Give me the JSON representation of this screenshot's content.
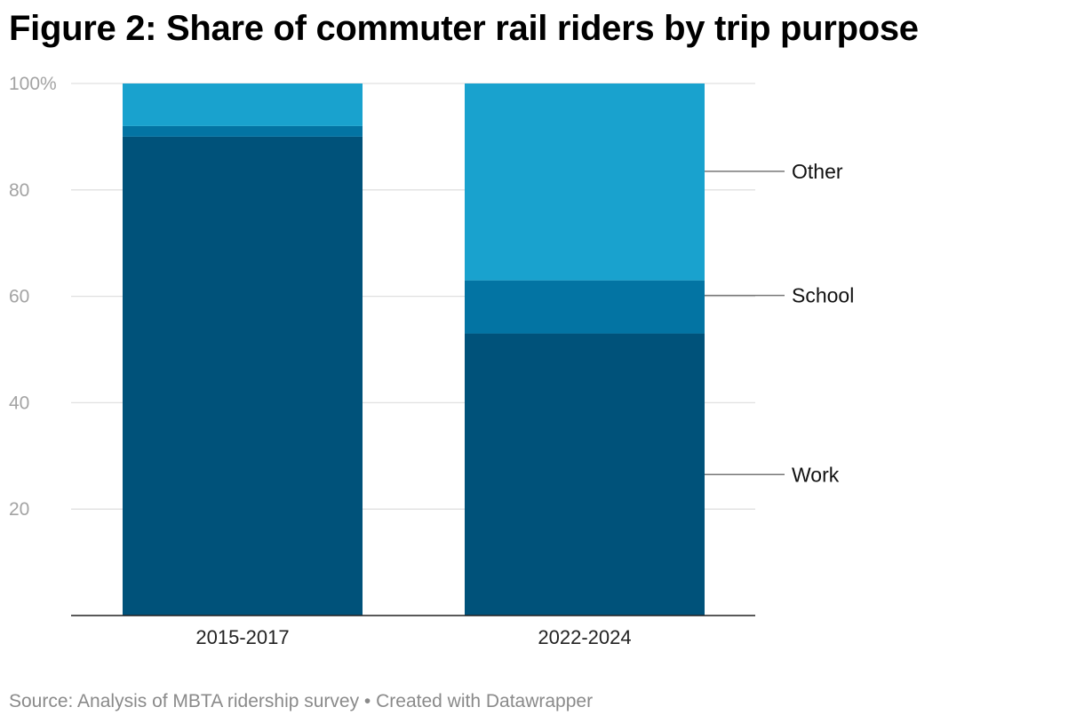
{
  "chart_data": {
    "type": "bar",
    "stacked": true,
    "title": "Figure 2: Share of commuter rail riders by trip purpose",
    "categories": [
      "2015-2017",
      "2022-2024"
    ],
    "series": [
      {
        "name": "Work",
        "values": [
          90,
          53
        ],
        "color": "#00527a"
      },
      {
        "name": "School",
        "values": [
          2,
          10
        ],
        "color": "#0374a3"
      },
      {
        "name": "Other",
        "values": [
          8,
          37
        ],
        "color": "#19a2ce"
      }
    ],
    "ylim": [
      0,
      100
    ],
    "yticks": [
      20,
      40,
      60,
      80,
      100
    ],
    "ytick_labels": [
      "20",
      "40",
      "60",
      "80",
      "100%"
    ],
    "xlabel": "",
    "ylabel": "",
    "grid": true,
    "legend": "direct labels right of last bar"
  },
  "footer": {
    "source": "Source: Analysis of MBTA ridership survey • Created with Datawrapper"
  },
  "colors": {
    "gridline": "#e0e0e0",
    "tick_label": "#a3a3a3",
    "axis": "#222222",
    "label_line": "#777777"
  }
}
